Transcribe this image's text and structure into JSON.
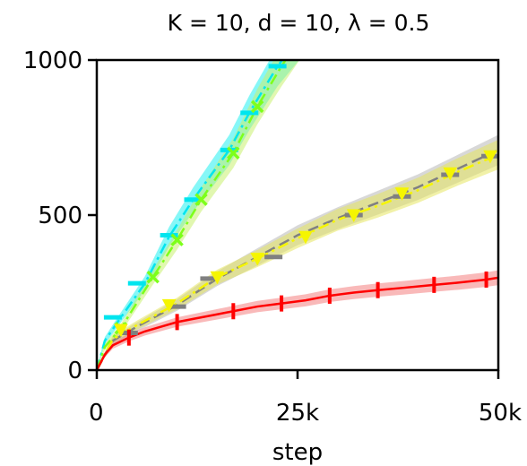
{
  "chart_data": {
    "type": "line",
    "title": "K = 10, d = 10, λ = 0.5",
    "xlabel": "step",
    "ylabel": "",
    "xlim": [
      0,
      50000
    ],
    "ylim": [
      0,
      1000
    ],
    "x_ticks": [
      {
        "value": 0,
        "label": "0"
      },
      {
        "value": 25000,
        "label": "25k"
      },
      {
        "value": 50000,
        "label": "50k"
      }
    ],
    "y_ticks": [
      {
        "value": 0,
        "label": "0"
      },
      {
        "value": 500,
        "label": "500"
      },
      {
        "value": 1000,
        "label": "1000"
      }
    ],
    "grid": false,
    "series": [
      {
        "color": "#00e5ee",
        "line_style": "dashdot",
        "marker": "hline",
        "band_color": "#22f0f0",
        "x": [
          0,
          1000,
          3000,
          6000,
          9000,
          12000,
          16500,
          19000,
          22500,
          25500
        ],
        "y": [
          0,
          95,
          170,
          280,
          430,
          550,
          710,
          830,
          980,
          1080
        ],
        "marker_x": [
          2000,
          5000,
          9000,
          12000,
          16500,
          19000,
          22500
        ],
        "marker_y": [
          170,
          280,
          435,
          550,
          710,
          830,
          980
        ]
      },
      {
        "color": "#7dff1a",
        "line_style": "dashdot",
        "marker": "x",
        "band_color": "#c8f070",
        "x": [
          0,
          1000,
          3000,
          7000,
          10000,
          13000,
          17000,
          20000,
          23000,
          26000
        ],
        "y": [
          0,
          75,
          135,
          300,
          420,
          550,
          700,
          850,
          980,
          1100
        ],
        "marker_x": [
          3000,
          7000,
          10000,
          13000,
          17000,
          20000
        ],
        "marker_y": [
          135,
          300,
          420,
          550,
          700,
          850
        ]
      },
      {
        "color": "#808080",
        "line_style": "dashed",
        "marker": "hline",
        "band_color": "#b8b8b8",
        "x": [
          0,
          2000,
          5000,
          10000,
          15000,
          20000,
          25000,
          30000,
          35000,
          40000,
          45000,
          50000
        ],
        "y": [
          0,
          95,
          140,
          210,
          295,
          365,
          435,
          490,
          540,
          590,
          650,
          710
        ],
        "marker_x": [
          4000,
          10000,
          14000,
          22000,
          32000,
          38000,
          44000,
          49000
        ],
        "marker_y": [
          120,
          205,
          295,
          365,
          500,
          560,
          630,
          690
        ]
      },
      {
        "color": "#f5f500",
        "line_style": "dashdot",
        "marker": "triangle-down",
        "band_color": "#e6e660",
        "x": [
          0,
          2000,
          5000,
          10000,
          15000,
          20000,
          25000,
          30000,
          35000,
          40000,
          45000,
          50000
        ],
        "y": [
          0,
          100,
          145,
          215,
          300,
          360,
          425,
          485,
          530,
          580,
          640,
          695
        ],
        "marker_x": [
          3000,
          9000,
          15000,
          20000,
          26000,
          32000,
          38000,
          44000,
          49000
        ],
        "marker_y": [
          130,
          210,
          300,
          360,
          430,
          500,
          570,
          635,
          690
        ]
      },
      {
        "color": "#ff0000",
        "line_style": "solid",
        "marker": "vline",
        "band_color": "#f48080",
        "x": [
          0,
          1000,
          2000,
          4000,
          6000,
          8000,
          10000,
          12000,
          15000,
          17000,
          20000,
          23000,
          26000,
          29000,
          32000,
          35000,
          38000,
          42000,
          45000,
          48500,
          50000
        ],
        "y": [
          0,
          50,
          80,
          105,
          125,
          140,
          155,
          165,
          180,
          190,
          205,
          215,
          225,
          240,
          250,
          258,
          265,
          275,
          282,
          292,
          298
        ],
        "marker_x": [
          4000,
          10000,
          17000,
          23000,
          29000,
          35000,
          42000,
          48500
        ],
        "marker_y": [
          105,
          155,
          190,
          215,
          240,
          258,
          275,
          292
        ]
      }
    ]
  }
}
